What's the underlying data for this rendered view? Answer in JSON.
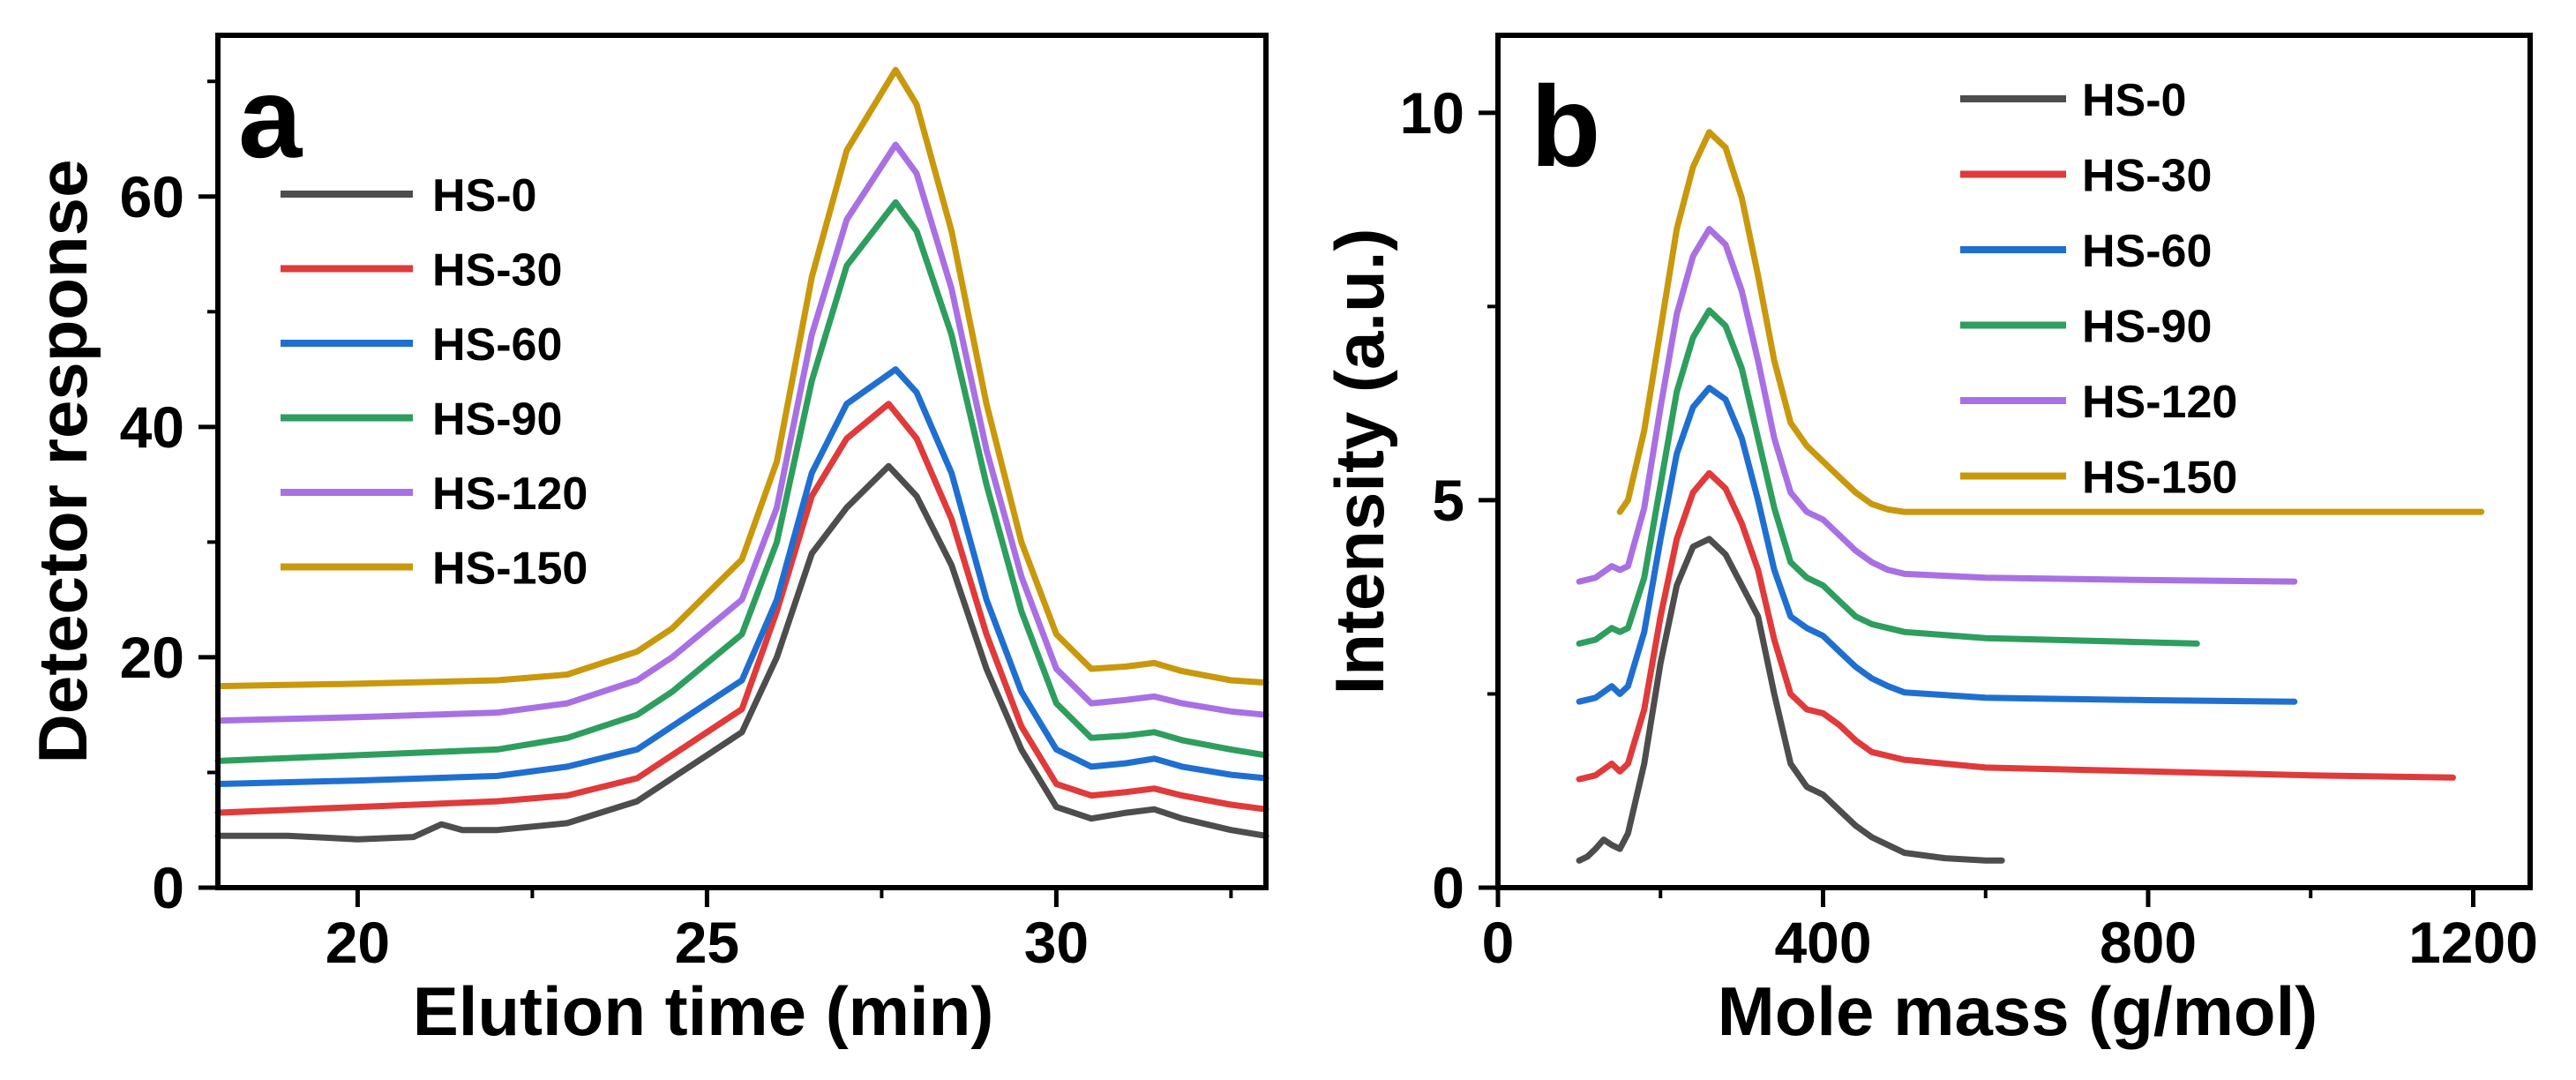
{
  "chart_data": [
    {
      "type": "line",
      "panel_label": "a",
      "xlabel": "Elution time (min)",
      "ylabel": "Detector response",
      "xlim": [
        18,
        33
      ],
      "ylim": [
        0,
        74
      ],
      "xticks": [
        20,
        25,
        30
      ],
      "yticks": [
        0,
        20,
        40,
        60
      ],
      "xtick_labels": [
        "20",
        "25",
        "30"
      ],
      "ytick_labels": [
        "0",
        "20",
        "40",
        "60"
      ],
      "legend_position": "top-left",
      "series": [
        {
          "name": "HS-0",
          "color": "#4d4d4d",
          "x": [
            18,
            19,
            20,
            20.8,
            21.2,
            21.5,
            22,
            23,
            24,
            24.5,
            25,
            25.5,
            26,
            26.5,
            27,
            27.6,
            28,
            28.5,
            29,
            29.5,
            30,
            30.5,
            31,
            31.4,
            31.8,
            32.5,
            33
          ],
          "y": [
            4.5,
            4.5,
            4.2,
            4.4,
            5.5,
            5.0,
            5.0,
            5.6,
            7.5,
            9.5,
            11.5,
            13.5,
            20,
            29,
            33,
            36.6,
            34,
            28,
            19,
            12,
            7,
            6,
            6.5,
            6.8,
            6,
            5,
            4.5
          ]
        },
        {
          "name": "HS-30",
          "color": "#e03a3a",
          "x": [
            18,
            20,
            22,
            23,
            24,
            24.5,
            25,
            25.5,
            26,
            26.5,
            27,
            27.6,
            28,
            28.5,
            29,
            29.5,
            30,
            30.5,
            31,
            31.4,
            31.8,
            32.5,
            33
          ],
          "y": [
            6.5,
            7,
            7.5,
            8,
            9.5,
            11.5,
            13.5,
            15.5,
            24,
            34,
            39,
            42,
            39,
            32,
            22,
            14,
            9,
            8,
            8.3,
            8.6,
            8,
            7.2,
            6.8
          ]
        },
        {
          "name": "HS-60",
          "color": "#1f6fd1",
          "x": [
            18,
            20,
            22,
            23,
            24,
            24.5,
            25,
            25.5,
            26,
            26.5,
            27,
            27.7,
            28,
            28.5,
            29,
            29.5,
            30,
            30.5,
            31,
            31.4,
            31.8,
            32.5,
            33
          ],
          "y": [
            9,
            9.3,
            9.7,
            10.5,
            12,
            14,
            16,
            18,
            25,
            36,
            42,
            45,
            43,
            36,
            25,
            17,
            12,
            10.5,
            10.8,
            11.2,
            10.5,
            9.8,
            9.5
          ]
        },
        {
          "name": "HS-90",
          "color": "#2e9e5e",
          "x": [
            18,
            20,
            22,
            23,
            24,
            24.5,
            25,
            25.5,
            26,
            26.5,
            27,
            27.7,
            28,
            28.5,
            29,
            29.5,
            30,
            30.5,
            31,
            31.4,
            31.8,
            32.5,
            33
          ],
          "y": [
            11,
            11.5,
            12,
            13,
            15,
            17,
            19.5,
            22,
            30,
            44,
            54,
            59.5,
            57,
            48,
            35,
            24,
            16,
            13,
            13.2,
            13.5,
            12.8,
            12,
            11.5
          ]
        },
        {
          "name": "HS-120",
          "color": "#a970e3",
          "x": [
            18,
            20,
            22,
            23,
            24,
            24.5,
            25,
            25.5,
            26,
            26.5,
            27,
            27.7,
            28,
            28.5,
            29,
            29.5,
            30,
            30.5,
            31,
            31.4,
            31.8,
            32.5,
            33
          ],
          "y": [
            14.5,
            14.8,
            15.2,
            16,
            18,
            20,
            22.5,
            25,
            33,
            48,
            58,
            64.5,
            62,
            52,
            38,
            27,
            19,
            16,
            16.3,
            16.6,
            16,
            15.3,
            15
          ]
        },
        {
          "name": "HS-150",
          "color": "#c9980c",
          "x": [
            18,
            20,
            22,
            23,
            24,
            24.5,
            25,
            25.5,
            26,
            26.5,
            27,
            27.7,
            28,
            28.5,
            29,
            29.5,
            30,
            30.5,
            31,
            31.4,
            31.8,
            32.5,
            33
          ],
          "y": [
            17.5,
            17.7,
            18,
            18.5,
            20.5,
            22.5,
            25.5,
            28.5,
            37,
            53,
            64,
            71,
            68,
            57,
            42,
            30,
            22,
            19,
            19.2,
            19.5,
            18.8,
            18,
            17.8
          ]
        }
      ]
    },
    {
      "type": "line",
      "panel_label": "b",
      "xlabel": "Mole mass (g/mol)",
      "ylabel": "Intensity (a.u.)",
      "xlim": [
        0,
        1270
      ],
      "ylim": [
        0,
        11
      ],
      "xticks": [
        0,
        400,
        800,
        1200
      ],
      "yticks": [
        0,
        5,
        10
      ],
      "xtick_labels": [
        "0",
        "400",
        "800",
        "1200"
      ],
      "ytick_labels": [
        "0",
        "5",
        "10"
      ],
      "legend_position": "top-right",
      "series": [
        {
          "name": "HS-0",
          "color": "#4d4d4d",
          "x": [
            100,
            110,
            120,
            130,
            140,
            150,
            160,
            180,
            200,
            220,
            240,
            260,
            280,
            300,
            320,
            340,
            360,
            380,
            400,
            420,
            440,
            460,
            480,
            500,
            550,
            600,
            620
          ],
          "y": [
            0.35,
            0.4,
            0.5,
            0.62,
            0.55,
            0.5,
            0.7,
            1.6,
            2.9,
            3.9,
            4.4,
            4.5,
            4.3,
            3.9,
            3.5,
            2.5,
            1.6,
            1.3,
            1.2,
            1.0,
            0.8,
            0.65,
            0.55,
            0.45,
            0.38,
            0.35,
            0.35
          ]
        },
        {
          "name": "HS-30",
          "color": "#e03a3a",
          "x": [
            100,
            120,
            140,
            150,
            160,
            180,
            200,
            220,
            240,
            260,
            280,
            300,
            320,
            340,
            360,
            380,
            400,
            420,
            440,
            460,
            480,
            500,
            600,
            800,
            1000,
            1175
          ],
          "y": [
            1.4,
            1.45,
            1.6,
            1.5,
            1.6,
            2.3,
            3.5,
            4.5,
            5.1,
            5.35,
            5.15,
            4.7,
            4.1,
            3.2,
            2.5,
            2.3,
            2.25,
            2.1,
            1.9,
            1.75,
            1.7,
            1.65,
            1.55,
            1.5,
            1.45,
            1.42
          ]
        },
        {
          "name": "HS-60",
          "color": "#1f6fd1",
          "x": [
            100,
            120,
            140,
            150,
            160,
            180,
            200,
            220,
            240,
            260,
            280,
            300,
            320,
            340,
            360,
            380,
            400,
            420,
            440,
            460,
            480,
            500,
            600,
            800,
            980
          ],
          "y": [
            2.4,
            2.45,
            2.6,
            2.5,
            2.6,
            3.3,
            4.5,
            5.6,
            6.2,
            6.45,
            6.3,
            5.8,
            5.0,
            4.1,
            3.5,
            3.35,
            3.25,
            3.05,
            2.85,
            2.7,
            2.6,
            2.52,
            2.45,
            2.42,
            2.4
          ]
        },
        {
          "name": "HS-90",
          "color": "#2e9e5e",
          "x": [
            100,
            120,
            140,
            150,
            160,
            180,
            200,
            220,
            240,
            260,
            280,
            300,
            320,
            340,
            360,
            380,
            400,
            420,
            440,
            460,
            480,
            500,
            600,
            750,
            860
          ],
          "y": [
            3.15,
            3.2,
            3.35,
            3.3,
            3.35,
            4.0,
            5.2,
            6.4,
            7.1,
            7.45,
            7.25,
            6.7,
            5.8,
            4.9,
            4.2,
            4.0,
            3.9,
            3.7,
            3.5,
            3.4,
            3.35,
            3.3,
            3.22,
            3.18,
            3.15
          ]
        },
        {
          "name": "HS-120",
          "color": "#a970e3",
          "x": [
            100,
            120,
            140,
            150,
            160,
            180,
            200,
            220,
            240,
            260,
            280,
            300,
            320,
            340,
            360,
            380,
            400,
            420,
            440,
            460,
            480,
            500,
            600,
            800,
            980
          ],
          "y": [
            3.95,
            4.0,
            4.15,
            4.1,
            4.15,
            4.9,
            6.2,
            7.4,
            8.15,
            8.5,
            8.3,
            7.7,
            6.8,
            5.8,
            5.1,
            4.85,
            4.75,
            4.55,
            4.35,
            4.2,
            4.1,
            4.05,
            4.0,
            3.97,
            3.95
          ]
        },
        {
          "name": "HS-150",
          "color": "#c9980c",
          "x": [
            150,
            160,
            180,
            200,
            220,
            240,
            260,
            280,
            300,
            320,
            340,
            360,
            380,
            400,
            420,
            440,
            460,
            480,
            500,
            600,
            800,
            1000,
            1210
          ],
          "y": [
            4.85,
            5.0,
            5.9,
            7.2,
            8.5,
            9.3,
            9.75,
            9.55,
            8.9,
            7.9,
            6.8,
            6.0,
            5.7,
            5.5,
            5.3,
            5.1,
            4.95,
            4.88,
            4.85,
            4.85,
            4.85,
            4.85,
            4.85
          ]
        }
      ]
    }
  ]
}
